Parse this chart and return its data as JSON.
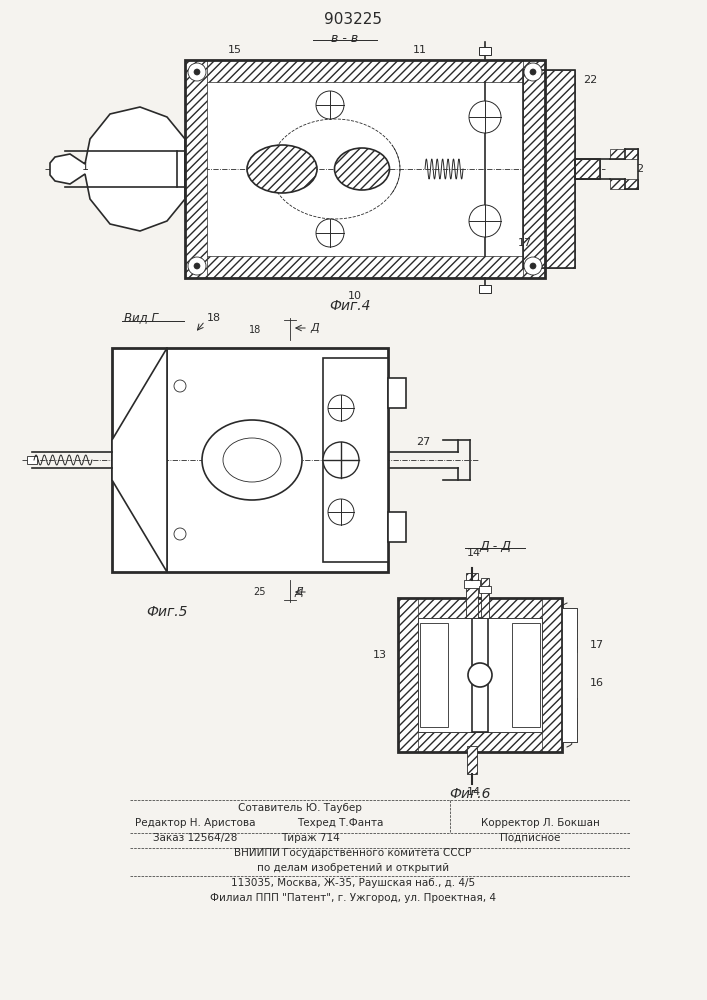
{
  "title": "903225",
  "fig_label1": "Фиг.4",
  "fig_label2": "Фиг.5",
  "fig_label3": "Фиг.6",
  "view_label": "Вид Г",
  "section_BB": "в - в",
  "section_DD": "Д - Д",
  "footer_c1": "Сотавитель Ю. Таубер",
  "footer_l1": "Редактор Н. Аристова",
  "footer_c2": "Техред Т.Фанта",
  "footer_r1": "Корректор Л. Бокшан",
  "footer_l2": "Заказ 12564/28",
  "footer_c3": "Тираж 714",
  "footer_r2": "Подписное",
  "footer_b1": "ВНИИПИ Государственного комитета СССР",
  "footer_b2": "по делам изобретений и открытий",
  "footer_b3": "113035, Москва, Ж-35, Раушская наб., д. 4/5",
  "footer_b4": "Филиал ППП \"Патент\", г. Ужгород, ул. Проектная, 4",
  "bg_color": "#f5f3ef",
  "line_color": "#2a2a2a"
}
